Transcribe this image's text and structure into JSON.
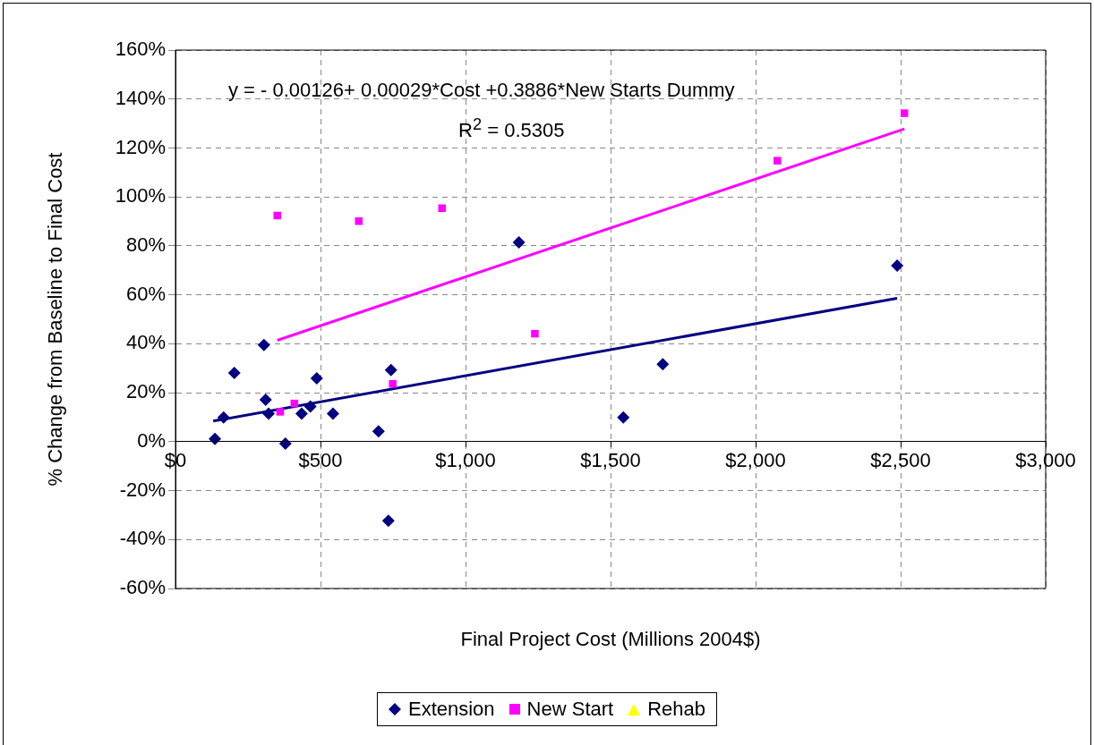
{
  "chart_data": {
    "type": "scatter",
    "xlabel": "Final Project Cost (Millions 2004$)",
    "ylabel": "% Change from Baseline to Final Cost",
    "annotations": [
      "y =  - 0.00126+ 0.00029*Cost +0.3886*New Starts Dummy",
      "R$^{2}$ = 0.5305"
    ],
    "xlim": [
      0,
      3000
    ],
    "xticks": [
      {
        "value": 0,
        "label": "$0"
      },
      {
        "value": 500,
        "label": "$500"
      },
      {
        "value": 1000,
        "label": "$1,000"
      },
      {
        "value": 1500,
        "label": "$1,500"
      },
      {
        "value": 2000,
        "label": "$2,000"
      },
      {
        "value": 2500,
        "label": "$2,500"
      },
      {
        "value": 3000,
        "label": "$3,000"
      }
    ],
    "ylim": [
      -60,
      160
    ],
    "yticks": [
      {
        "value": -60,
        "label": "-60%"
      },
      {
        "value": -40,
        "label": "-40%"
      },
      {
        "value": -20,
        "label": "-20%"
      },
      {
        "value": 0,
        "label": "0%"
      },
      {
        "value": 20,
        "label": "20%"
      },
      {
        "value": 40,
        "label": "40%"
      },
      {
        "value": 60,
        "label": "60%"
      },
      {
        "value": 80,
        "label": "80%"
      },
      {
        "value": 100,
        "label": "100%"
      },
      {
        "value": 120,
        "label": "120%"
      },
      {
        "value": 140,
        "label": "140%"
      },
      {
        "value": 160,
        "label": "160%"
      }
    ],
    "grid": true,
    "legend": "bottom",
    "series": [
      {
        "name": "Extension",
        "color": "#000080",
        "marker": "diamond",
        "x": [
          136,
          166,
          203,
          305,
          311,
          321,
          379,
          435,
          465,
          487,
          543,
          700,
          743,
          734,
          1184,
          1544,
          1680,
          2488
        ],
        "values": [
          1.1,
          9.9,
          28.1,
          39.5,
          17.1,
          11.4,
          -0.8,
          11.4,
          14.4,
          25.9,
          11.4,
          4.2,
          29.3,
          -32.3,
          81.4,
          9.9,
          31.6,
          71.9
        ]
      },
      {
        "name": "New Start",
        "color": "#ff00ff",
        "marker": "square",
        "x": [
          361,
          410,
          749,
          351,
          632,
          919,
          1239,
          2075,
          2513
        ],
        "values": [
          12.2,
          15.6,
          23.6,
          92.4,
          90.1,
          95.4,
          44.1,
          114.8,
          134.2
        ]
      },
      {
        "name": "Rehab",
        "color": "#ffff00",
        "marker": "triangle"
      },
      {
        "type": "line",
        "color": "#000080",
        "marker": "none",
        "x": [
          130,
          2488
        ],
        "values": [
          8.4,
          58.6
        ]
      },
      {
        "type": "line",
        "color": "#ff00ff",
        "marker": "none",
        "x": [
          351,
          2513
        ],
        "values": [
          41.4,
          127.8
        ]
      }
    ]
  }
}
